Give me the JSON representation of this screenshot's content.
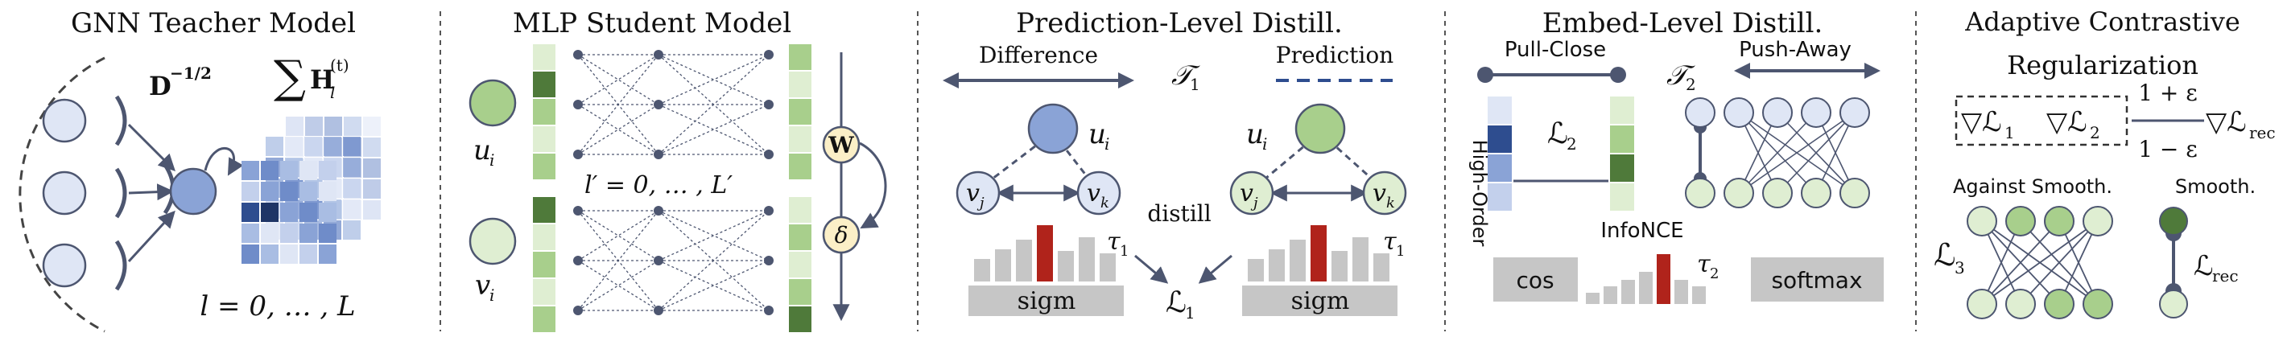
{
  "panels": {
    "gnn": {
      "title": "GNN Teacher Model",
      "norm_base": "D",
      "norm_exp": "−1/2",
      "sum_symbol": "∑",
      "h_base": "H",
      "h_sub": "l",
      "h_sup": "(t)",
      "layer_range": "l = 0, … , L"
    },
    "mlp": {
      "title": "MLP Student Model",
      "node_u": "u",
      "node_u_sub": "i",
      "node_v": "v",
      "node_v_sub": "i",
      "layer_range": "l′ = 0, … , L′",
      "w_label": "W",
      "delta_label": "δ"
    },
    "pred": {
      "title": "Prediction-Level Distill.",
      "difference": "Difference",
      "prediction": "Prediction",
      "tau_base": "𝒯",
      "tau_sub": "1",
      "u": "u",
      "u_sub": "i",
      "vj": "v",
      "vj_sub": "j",
      "vk": "v",
      "vk_sub": "k",
      "distill": "distill",
      "sigm": "sigm",
      "small_tau": "τ",
      "small_tau_sub": "1",
      "loss_base": "ℒ",
      "loss_sub": "1"
    },
    "embed": {
      "title": "Embed-Level Distill.",
      "pull_close": "Pull-Close",
      "push_away": "Push-Away",
      "high_order": "High-Order",
      "loss_base": "ℒ",
      "loss_sub": "2",
      "tau_base": "𝒯",
      "tau_sub": "2",
      "infonce": "InfoNCE",
      "cos": "cos",
      "softmax": "softmax",
      "small_tau": "τ",
      "small_tau_sub": "2"
    },
    "adaptive": {
      "title_line1": "Adaptive Contrastive",
      "title_line2": "Regularization",
      "grad1": "▽ℒ",
      "grad1_sub": "1",
      "grad2": "▽ℒ",
      "grad2_sub": "2",
      "upper": "1 + ε",
      "lower": "1 − ε",
      "rec": "▽ℒ",
      "rec_sub": "rec",
      "against_smooth": "Against Smooth.",
      "smooth": "Smooth.",
      "loss3": "ℒ",
      "loss3_sub": "3",
      "lrec": "ℒ",
      "lrec_sub": "rec"
    }
  },
  "colors": {
    "node_blue": "#a9bde3",
    "node_blue_dark": "#8aa3d6",
    "node_green": "#a8cf8c",
    "node_green_light": "#dfeed2",
    "node_blue_light": "#dfe6f5",
    "dark_gray": "#4d5670",
    "red_bar": "#b0231b",
    "gray_bar": "#c6c6c6",
    "yellow": "#fbefc7",
    "deep_blue": "#2e4d8f",
    "deep_green": "#4f7a3a"
  }
}
